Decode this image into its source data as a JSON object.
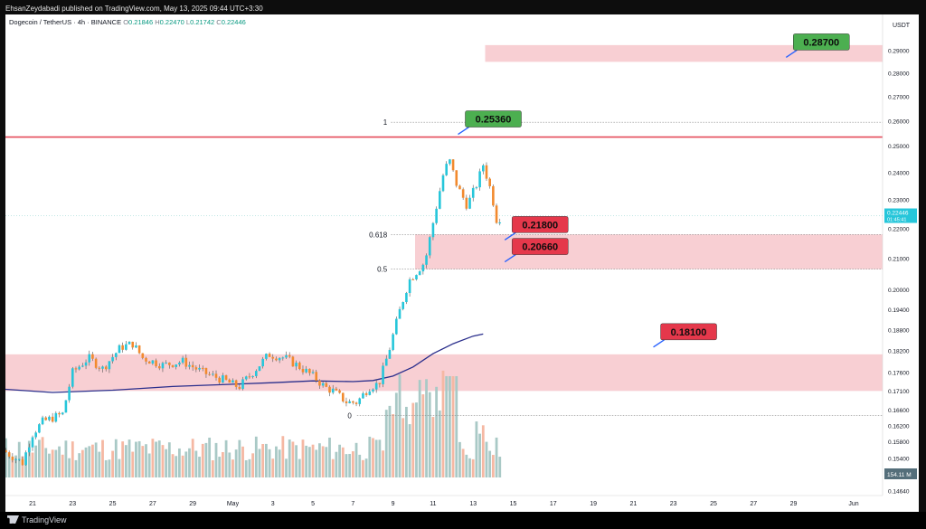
{
  "header": {
    "publisher_line": "EhsanZeydabadi published on TradingView.com, May 13, 2025 09:44 UTC+3:30"
  },
  "legend": {
    "symbol": "Dogecoin / TetherUS · 4h · BINANCE",
    "open_key": "O",
    "open": "0.21846",
    "high_key": "H",
    "high": "0.22470",
    "low_key": "L",
    "low": "0.21742",
    "close_key": "C",
    "close": "0.22446"
  },
  "footer": {
    "brand": "TradingView"
  },
  "chart_data": {
    "type": "candlestick",
    "currency": "USDT",
    "price_axis": {
      "ticks": [
        0.29,
        0.28,
        0.27,
        0.26,
        0.25,
        0.24,
        0.23,
        0.22,
        0.21,
        0.2,
        0.194,
        0.188,
        0.182,
        0.176,
        0.171,
        0.166,
        0.162,
        0.158,
        0.154,
        0.1464
      ],
      "tick_labels": [
        "0.29000",
        "0.28000",
        "0.27000",
        "0.26000",
        "0.25000",
        "0.24000",
        "0.23000",
        "0.22000",
        "0.21000",
        "0.20000",
        "0.19400",
        "0.18800",
        "0.18200",
        "0.17600",
        "0.17100",
        "0.16600",
        "0.16200",
        "0.15800",
        "0.15400",
        "0.14640"
      ],
      "current_price_label": "0.22446",
      "countdown_label": "01:45:41",
      "volume_label": "154.11 M",
      "scale": "log"
    },
    "time_axis": {
      "tick_labels": [
        "21",
        "23",
        "25",
        "27",
        "29",
        "May",
        "3",
        "5",
        "7",
        "9",
        "11",
        "13",
        "15",
        "17",
        "19",
        "21",
        "23",
        "25",
        "27",
        "29",
        "Jun"
      ],
      "tick_days": [
        -10,
        -8,
        -6,
        -4,
        -2,
        0,
        2,
        4,
        6,
        8,
        10,
        12,
        14,
        16,
        18,
        20,
        22,
        24,
        26,
        28,
        31
      ],
      "day_origin": "May 1"
    },
    "zones": [
      {
        "from": 0.285,
        "to": 0.2925,
        "color": "#f8cfd3"
      },
      {
        "from": 0.2066,
        "to": 0.218,
        "color": "#f8cfd3"
      },
      {
        "from": 0.171,
        "to": 0.181,
        "color": "#f8cfd3"
      }
    ],
    "resistance_line": {
      "value": 0.2536,
      "color": "#e54b5a"
    },
    "fib_levels": [
      {
        "label": "1",
        "value": 0.2595
      },
      {
        "label": "0.618",
        "value": 0.218
      },
      {
        "label": "0.5",
        "value": 0.2066
      },
      {
        "label": "0",
        "value": 0.1646
      }
    ],
    "current_price": 0.22446,
    "price_callouts": [
      {
        "text": "0.28700",
        "value": 0.287,
        "anchor_day": 27.4,
        "color": "#4caf50"
      },
      {
        "text": "0.25360",
        "value": 0.2536,
        "anchor_day": 10.8,
        "color": "#4caf50"
      },
      {
        "text": "0.21800",
        "value": 0.218,
        "anchor_day": 13.3,
        "color": "#e5384b"
      },
      {
        "text": "0.20660",
        "value": 0.2066,
        "anchor_day": 13.2,
        "color": "#e5384b"
      },
      {
        "text": "0.18100",
        "value": 0.181,
        "anchor_day": 21.0,
        "color": "#e5384b"
      }
    ],
    "moving_average": {
      "color": "#2a2e8c",
      "points": [
        [
          -11.5,
          0.1715
        ],
        [
          -9,
          0.1706
        ],
        [
          -6,
          0.1712
        ],
        [
          -3,
          0.1722
        ],
        [
          0,
          0.1728
        ],
        [
          2,
          0.1732
        ],
        [
          4,
          0.1737
        ],
        [
          6,
          0.1735
        ],
        [
          7,
          0.1738
        ],
        [
          8,
          0.175
        ],
        [
          9,
          0.1775
        ],
        [
          10,
          0.1812
        ],
        [
          11,
          0.184
        ],
        [
          12,
          0.1862
        ],
        [
          12.5,
          0.1868
        ]
      ]
    },
    "candle_path": [
      [
        -11.5,
        0.156
      ],
      [
        -10.5,
        0.153
      ],
      [
        -10,
        0.16
      ],
      [
        -9.5,
        0.163
      ],
      [
        -8.5,
        0.165
      ],
      [
        -8,
        0.176
      ],
      [
        -7.2,
        0.18
      ],
      [
        -6.5,
        0.177
      ],
      [
        -5.6,
        0.183
      ],
      [
        -5,
        0.184
      ],
      [
        -4.5,
        0.18
      ],
      [
        -3.5,
        0.178
      ],
      [
        -2.5,
        0.179
      ],
      [
        -1.5,
        0.176
      ],
      [
        -0.5,
        0.174
      ],
      [
        0.3,
        0.172
      ],
      [
        1,
        0.176
      ],
      [
        1.8,
        0.181
      ],
      [
        2.6,
        0.18
      ],
      [
        3.2,
        0.178
      ],
      [
        4,
        0.175
      ],
      [
        4.6,
        0.172
      ],
      [
        5,
        0.171
      ],
      [
        5.7,
        0.168
      ],
      [
        6.2,
        0.168
      ],
      [
        6.8,
        0.172
      ],
      [
        7.3,
        0.173
      ],
      [
        7.8,
        0.182
      ],
      [
        8.3,
        0.193
      ],
      [
        8.8,
        0.203
      ],
      [
        9.2,
        0.206
      ],
      [
        9.6,
        0.209
      ],
      [
        10,
        0.222
      ],
      [
        10.5,
        0.239
      ],
      [
        10.8,
        0.245
      ],
      [
        11.2,
        0.235
      ],
      [
        11.7,
        0.228
      ],
      [
        12.2,
        0.236
      ],
      [
        12.5,
        0.243
      ],
      [
        12.9,
        0.233
      ],
      [
        13.2,
        0.222
      ],
      [
        13.4,
        0.2245
      ]
    ],
    "candle_down_color": "#f28a2e",
    "candle_up_color": "#26c6da",
    "volume_up_color": "#a9c9c6",
    "volume_down_color": "#f5b8a3"
  }
}
